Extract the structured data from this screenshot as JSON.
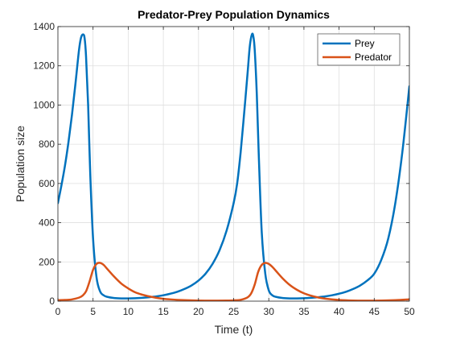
{
  "chart_data": {
    "type": "line",
    "title": "Predator-Prey Population Dynamics",
    "xlabel": "Time (t)",
    "ylabel": "Population size",
    "xlim": [
      0,
      50
    ],
    "ylim": [
      0,
      1400
    ],
    "xticks": [
      "0",
      "5",
      "10",
      "15",
      "20",
      "25",
      "30",
      "35",
      "40",
      "45",
      "50"
    ],
    "yticks": [
      "0",
      "200",
      "400",
      "600",
      "800",
      "1000",
      "1200",
      "1400"
    ],
    "grid": true,
    "legend_position": "top-right",
    "series": [
      {
        "name": "Prey",
        "color": "#0072BD",
        "x": [
          0,
          0.5,
          1,
          1.5,
          2,
          2.5,
          3,
          3.3,
          3.6,
          3.8,
          4,
          4.3,
          4.6,
          5,
          5.5,
          6,
          6.5,
          7,
          8,
          9,
          10,
          11,
          12,
          13,
          14,
          15,
          16,
          17,
          18,
          19,
          20,
          21,
          22,
          23,
          24,
          25,
          25.5,
          26,
          26.5,
          27,
          27.3,
          27.6,
          27.8,
          28,
          28.3,
          28.6,
          29,
          29.5,
          30,
          30.5,
          31,
          32,
          33,
          34,
          35,
          36,
          37,
          38,
          39,
          40,
          41,
          42,
          43,
          44,
          45,
          46,
          47,
          48,
          49,
          50
        ],
        "values": [
          500,
          590,
          690,
          810,
          950,
          1110,
          1280,
          1345,
          1360,
          1340,
          1250,
          1000,
          650,
          320,
          120,
          50,
          30,
          22,
          16,
          14,
          14,
          15,
          17,
          20,
          24,
          30,
          38,
          48,
          62,
          80,
          105,
          140,
          190,
          260,
          360,
          500,
          600,
          760,
          960,
          1170,
          1300,
          1360,
          1350,
          1280,
          1050,
          720,
          350,
          140,
          55,
          30,
          22,
          16,
          14,
          14,
          15,
          17,
          20,
          24,
          30,
          38,
          48,
          62,
          80,
          105,
          140,
          210,
          320,
          500,
          760,
          1095
        ]
      },
      {
        "name": "Predator",
        "color": "#D95319",
        "x": [
          0,
          1,
          2,
          3,
          3.5,
          4,
          4.5,
          5,
          5.5,
          6,
          6.5,
          7,
          8,
          9,
          10,
          11,
          12,
          13,
          14,
          15,
          16,
          18,
          20,
          22,
          24,
          25,
          26,
          27,
          27.5,
          28,
          28.5,
          29,
          29.5,
          30,
          30.5,
          31,
          32,
          33,
          34,
          35,
          36,
          37,
          38,
          40,
          42,
          44,
          46,
          48,
          50
        ],
        "values": [
          5,
          6,
          9,
          18,
          28,
          50,
          100,
          160,
          190,
          195,
          185,
          165,
          125,
          90,
          65,
          45,
          33,
          24,
          17,
          12,
          9,
          5,
          3,
          2.5,
          3,
          4,
          7,
          20,
          40,
          85,
          150,
          185,
          195,
          190,
          175,
          155,
          115,
          82,
          58,
          40,
          28,
          19,
          13,
          6,
          3,
          2.5,
          3,
          5,
          9
        ]
      }
    ]
  }
}
